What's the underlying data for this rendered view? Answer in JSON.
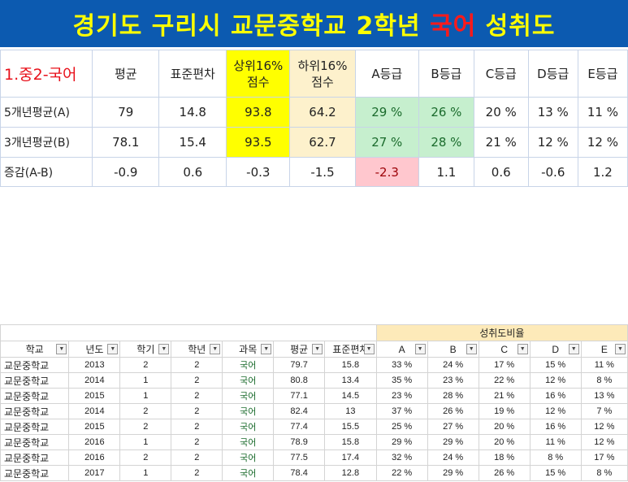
{
  "banner": {
    "title_pre": "경기도 구리시 교문중학교 2학년 ",
    "title_hl": "국어",
    "title_post": " 성취도"
  },
  "summary": {
    "corner_label": "1.중2-국어",
    "headers": [
      "평균",
      "표준편차",
      "상위16%\n점수",
      "하위16%\n점수",
      "A등급",
      "B등급",
      "C등급",
      "D등급",
      "E등급"
    ],
    "rows": [
      {
        "label": "5개년평균(A)",
        "values": [
          "79",
          "14.8",
          "93.8",
          "64.2",
          "29 %",
          "26 %",
          "20 %",
          "13 %",
          "11 %"
        ]
      },
      {
        "label": "3개년평균(B)",
        "values": [
          "78.1",
          "15.4",
          "93.5",
          "62.7",
          "27 %",
          "28 %",
          "21 %",
          "12 %",
          "12 %"
        ]
      },
      {
        "label": "증감(A-B)",
        "values": [
          "-0.9",
          "0.6",
          "-0.3",
          "-1.5",
          "-2.3",
          "1.1",
          "0.6",
          "-0.6",
          "1.2"
        ]
      }
    ]
  },
  "sheet": {
    "group_label": "성취도비율",
    "headers": [
      "학교",
      "년도",
      "학기",
      "학년",
      "과목",
      "평균",
      "표준편차",
      "A",
      "B",
      "C",
      "D",
      "E"
    ],
    "rows": [
      [
        "교문중학교",
        "2013",
        "2",
        "2",
        "국어",
        "79.7",
        "15.8",
        "33 %",
        "24 %",
        "17 %",
        "15 %",
        "11 %"
      ],
      [
        "교문중학교",
        "2014",
        "1",
        "2",
        "국어",
        "80.8",
        "13.4",
        "35 %",
        "23 %",
        "22 %",
        "12 %",
        "8 %"
      ],
      [
        "교문중학교",
        "2015",
        "1",
        "2",
        "국어",
        "77.1",
        "14.5",
        "23 %",
        "28 %",
        "21 %",
        "16 %",
        "13 %"
      ],
      [
        "교문중학교",
        "2014",
        "2",
        "2",
        "국어",
        "82.4",
        "13",
        "37 %",
        "26 %",
        "19 %",
        "12 %",
        "7 %"
      ],
      [
        "교문중학교",
        "2015",
        "2",
        "2",
        "국어",
        "77.4",
        "15.5",
        "25 %",
        "27 %",
        "20 %",
        "16 %",
        "12 %"
      ],
      [
        "교문중학교",
        "2016",
        "1",
        "2",
        "국어",
        "78.9",
        "15.8",
        "29 %",
        "29 %",
        "20 %",
        "11 %",
        "12 %"
      ],
      [
        "교문중학교",
        "2016",
        "2",
        "2",
        "국어",
        "77.5",
        "17.4",
        "32 %",
        "24 %",
        "18 %",
        "8 %",
        "17 %"
      ],
      [
        "교문중학교",
        "2017",
        "1",
        "2",
        "국어",
        "78.4",
        "12.8",
        "22 %",
        "29 %",
        "26 %",
        "15 %",
        "8 %"
      ]
    ]
  },
  "colors": {
    "banner_bg": "#0c5ab0",
    "banner_text": "#ffff00",
    "banner_highlight": "#ff1a1a",
    "highlight_yellow": "#ffff00",
    "highlight_cream": "#fdf1cc",
    "highlight_green": "#c6efce",
    "highlight_pink": "#ffc7ce",
    "subject_text": "#1a6b2c"
  }
}
